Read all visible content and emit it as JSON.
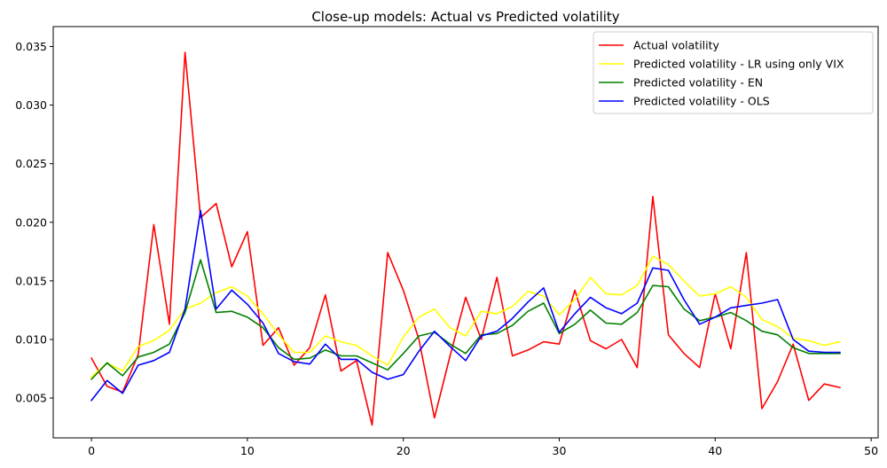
{
  "chart_data": {
    "type": "line",
    "title": "Close-up models: Actual vs Predicted volatility",
    "xlabel": "",
    "ylabel": "",
    "xlim": [
      -2.45,
      50.45
    ],
    "ylim": [
      0.0016,
      0.0367
    ],
    "xticks": [
      0,
      10,
      20,
      30,
      40,
      50
    ],
    "yticks": [
      0.005,
      0.01,
      0.015,
      0.02,
      0.025,
      0.03,
      0.035
    ],
    "ytick_labels": [
      "0.005",
      "0.010",
      "0.015",
      "0.020",
      "0.025",
      "0.030",
      "0.035"
    ],
    "grid": false,
    "legend_position": "top-right",
    "x": [
      0,
      1,
      2,
      3,
      4,
      5,
      6,
      7,
      8,
      9,
      10,
      11,
      12,
      13,
      14,
      15,
      16,
      17,
      18,
      19,
      20,
      21,
      22,
      23,
      24,
      25,
      26,
      27,
      28,
      29,
      30,
      31,
      32,
      33,
      34,
      35,
      36,
      37,
      38,
      39,
      40,
      41,
      42,
      43,
      44,
      45,
      46,
      47,
      48
    ],
    "series": [
      {
        "name": "Actual volatility",
        "color": "#ff0000",
        "values": [
          0.0084,
          0.006,
          0.0055,
          0.0087,
          0.0198,
          0.0113,
          0.0345,
          0.0204,
          0.0216,
          0.0162,
          0.0192,
          0.0095,
          0.011,
          0.0078,
          0.0093,
          0.0138,
          0.0073,
          0.0082,
          0.0027,
          0.0174,
          0.0142,
          0.01,
          0.0033,
          0.0086,
          0.0136,
          0.01,
          0.0153,
          0.0086,
          0.0091,
          0.0098,
          0.0096,
          0.0142,
          0.0099,
          0.0092,
          0.01,
          0.0076,
          0.0222,
          0.0104,
          0.0088,
          0.0076,
          0.0139,
          0.0092,
          0.0174,
          0.0041,
          0.0064,
          0.0096,
          0.0048,
          0.0062,
          0.0059
        ]
      },
      {
        "name": "Predicted volatility - LR using only VIX",
        "color": "#ffff00",
        "values": [
          0.0068,
          0.008,
          0.0073,
          0.0094,
          0.0099,
          0.0108,
          0.0126,
          0.0131,
          0.014,
          0.0145,
          0.0137,
          0.0122,
          0.0104,
          0.0089,
          0.0089,
          0.0103,
          0.0098,
          0.0095,
          0.0086,
          0.0078,
          0.0102,
          0.0119,
          0.0126,
          0.011,
          0.0103,
          0.0124,
          0.0122,
          0.0128,
          0.0141,
          0.0137,
          0.0121,
          0.0134,
          0.0153,
          0.0139,
          0.0138,
          0.0146,
          0.0171,
          0.0164,
          0.015,
          0.0137,
          0.0139,
          0.0145,
          0.0136,
          0.0117,
          0.0111,
          0.0101,
          0.0099,
          0.0095,
          0.0098
        ]
      },
      {
        "name": "Predicted volatility - EN",
        "color": "#008000",
        "values": [
          0.0066,
          0.008,
          0.0069,
          0.0085,
          0.0089,
          0.0096,
          0.0123,
          0.0168,
          0.0123,
          0.0124,
          0.0119,
          0.011,
          0.0093,
          0.0083,
          0.0084,
          0.0091,
          0.0086,
          0.0086,
          0.008,
          0.0074,
          0.0088,
          0.0103,
          0.0106,
          0.0096,
          0.0088,
          0.0104,
          0.0105,
          0.0112,
          0.0124,
          0.0131,
          0.0105,
          0.0113,
          0.0125,
          0.0114,
          0.0113,
          0.0123,
          0.0146,
          0.0145,
          0.0126,
          0.0116,
          0.0119,
          0.0123,
          0.0116,
          0.0107,
          0.0104,
          0.0093,
          0.0088,
          0.0088,
          0.0088
        ]
      },
      {
        "name": "Predicted volatility - OLS",
        "color": "#0000ff",
        "values": [
          0.0048,
          0.0065,
          0.0054,
          0.0078,
          0.0082,
          0.0089,
          0.0126,
          0.021,
          0.0126,
          0.0142,
          0.013,
          0.0114,
          0.0088,
          0.0081,
          0.0079,
          0.0096,
          0.0083,
          0.0083,
          0.0072,
          0.0066,
          0.007,
          0.009,
          0.0107,
          0.0094,
          0.0082,
          0.0103,
          0.0107,
          0.0118,
          0.0132,
          0.0144,
          0.0106,
          0.0122,
          0.0136,
          0.0127,
          0.0122,
          0.0131,
          0.0161,
          0.0159,
          0.0134,
          0.0113,
          0.0119,
          0.0127,
          0.0129,
          0.0131,
          0.0134,
          0.01,
          0.009,
          0.0089,
          0.0089
        ]
      }
    ]
  }
}
